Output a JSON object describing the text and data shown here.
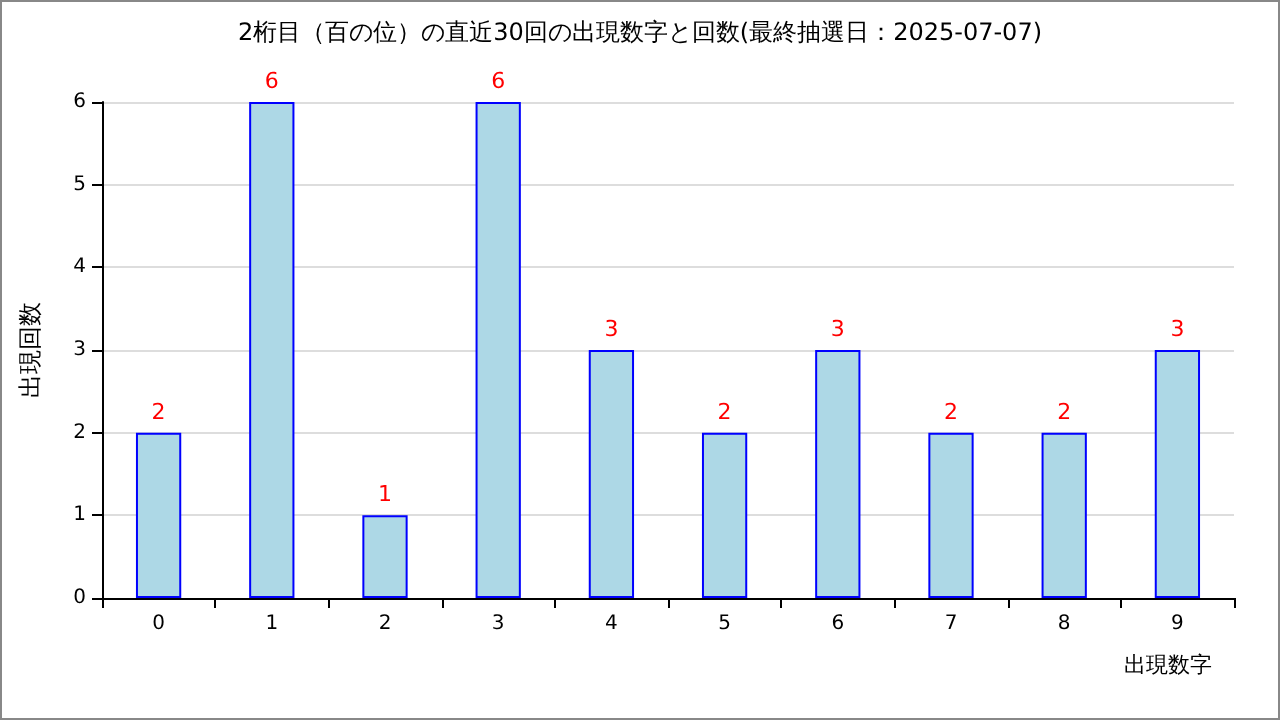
{
  "chart_data": {
    "type": "bar",
    "title": "2桁目（百の位）の直近30回の出現数字と回数(最終抽選日：2025-07-07)",
    "xlabel": "出現数字",
    "ylabel": "出現回数",
    "categories": [
      "0",
      "1",
      "2",
      "3",
      "4",
      "5",
      "6",
      "7",
      "8",
      "9"
    ],
    "values": [
      2,
      6,
      1,
      6,
      3,
      2,
      3,
      2,
      2,
      3
    ],
    "color": "#add8e6",
    "ylim": [
      0,
      6
    ],
    "yticks": [
      0,
      1,
      2,
      3,
      4,
      5,
      6
    ],
    "grid": "y",
    "data_labels": true
  }
}
